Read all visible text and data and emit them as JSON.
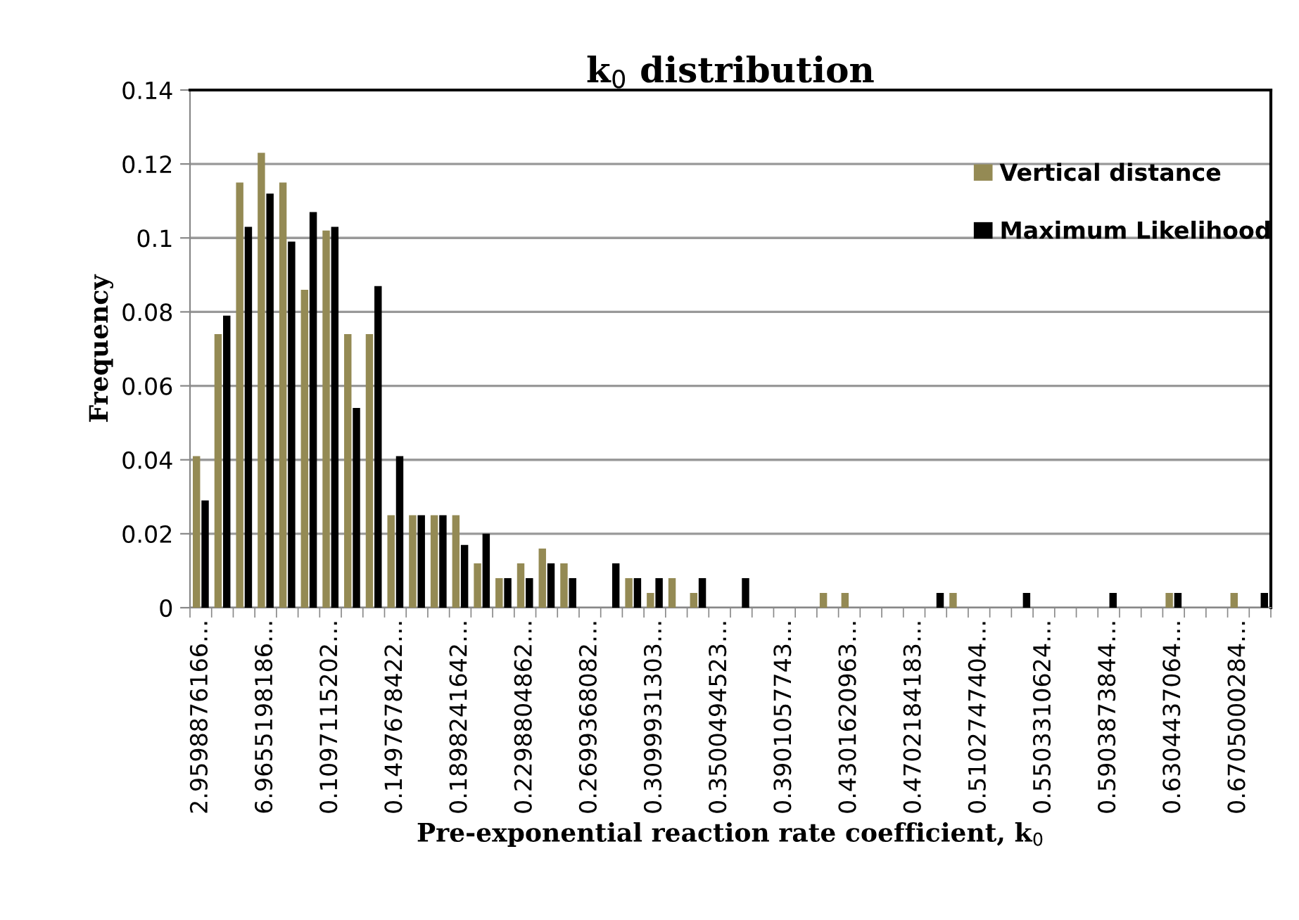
{
  "chart_data": {
    "type": "bar",
    "title": "k$_{0}$ distribution",
    "xlabel": "Pre-exponential reaction rate coefficient, k$_{0}$",
    "ylabel": "Frequency",
    "categories": [
      "2.9598876166…",
      null,
      null,
      "6.9655198186…",
      null,
      null,
      "0.1097115202…",
      null,
      null,
      "0.1497678422…",
      null,
      null,
      "0.1898241642…",
      null,
      null,
      "0.2298804862…",
      null,
      null,
      "0.2699368082…",
      null,
      null,
      "0.3099931303…",
      null,
      null,
      "0.3500494523…",
      null,
      null,
      "0.3901057743…",
      null,
      null,
      "0.4301620963…",
      null,
      null,
      "0.4702184183…",
      null,
      null,
      "0.5102747404…",
      null,
      null,
      "0.5503310624…",
      null,
      null,
      "0.5903873844…",
      null,
      null,
      "0.6304437064…",
      null,
      null,
      "0.6705000284…",
      null
    ],
    "series": [
      {
        "name": "Vertical distance",
        "color": "#948a54",
        "values": [
          0.041,
          0.074,
          0.115,
          0.123,
          0.115,
          0.086,
          0.102,
          0.074,
          0.074,
          0.025,
          0.025,
          0.025,
          0.025,
          0.012,
          0.008,
          0.012,
          0.016,
          0.012,
          0,
          0,
          0.008,
          0.004,
          0.008,
          0.004,
          0,
          0,
          0,
          0,
          0,
          0.004,
          0.004,
          0,
          0,
          0,
          0,
          0.004,
          0,
          0,
          0,
          0,
          0,
          0,
          0,
          0,
          0,
          0.004,
          0,
          0,
          0.004,
          0
        ]
      },
      {
        "name": "Maximum Likelihood",
        "color": "#000000",
        "values": [
          0.029,
          0.079,
          0.103,
          0.112,
          0.099,
          0.107,
          0.103,
          0.054,
          0.087,
          0.041,
          0.025,
          0.025,
          0.017,
          0.02,
          0.008,
          0.008,
          0.012,
          0.008,
          0,
          0.012,
          0.008,
          0.008,
          0,
          0.008,
          0,
          0.008,
          0,
          0,
          0,
          0,
          0,
          0,
          0,
          0,
          0.004,
          0,
          0,
          0,
          0.004,
          0,
          0,
          0,
          0.004,
          0,
          0,
          0.004,
          0,
          0,
          0,
          0.004
        ]
      }
    ],
    "ylim": [
      0,
      0.14
    ],
    "yticks": [
      0,
      0.02,
      0.04,
      0.06,
      0.08,
      0.1,
      0.12,
      0.14
    ],
    "grid": "y",
    "legend": "top right"
  }
}
